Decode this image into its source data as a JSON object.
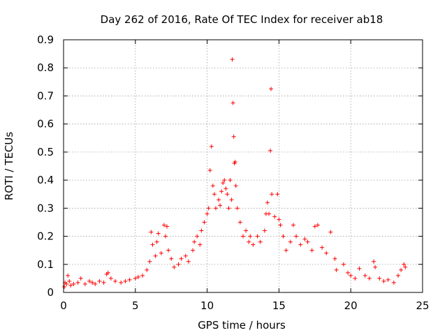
{
  "chart_data": {
    "type": "scatter",
    "title": "Day 262 of 2016, Rate Of TEC Index for receiver ab18",
    "xlabel": "GPS time / hours",
    "ylabel": "ROTI / TECUs",
    "xlim": [
      0,
      25
    ],
    "ylim": [
      0,
      0.9
    ],
    "xticks": [
      0,
      5,
      10,
      15,
      20,
      25
    ],
    "yticks": [
      0,
      0.1,
      0.2,
      0.3,
      0.4,
      0.5,
      0.6,
      0.7,
      0.8,
      0.9
    ],
    "xtick_labels": [
      "0",
      "5",
      "10",
      "15",
      "20",
      "25"
    ],
    "ytick_labels": [
      "0",
      "0.1",
      "0.2",
      "0.3",
      "0.4",
      "0.5",
      "0.6",
      "0.7",
      "0.8",
      "0.9"
    ],
    "grid": true,
    "marker": "+",
    "marker_color": "#ff0000",
    "series": [
      {
        "values": [
          [
            0.05,
            0.02
          ],
          [
            0.1,
            0.035
          ],
          [
            0.2,
            0.03
          ],
          [
            0.3,
            0.06
          ],
          [
            0.4,
            0.04
          ],
          [
            0.5,
            0.025
          ],
          [
            0.7,
            0.03
          ],
          [
            1.0,
            0.035
          ],
          [
            1.2,
            0.05
          ],
          [
            1.5,
            0.03
          ],
          [
            1.8,
            0.04
          ],
          [
            2.0,
            0.035
          ],
          [
            2.2,
            0.03
          ],
          [
            2.5,
            0.04
          ],
          [
            2.8,
            0.035
          ],
          [
            3.0,
            0.065
          ],
          [
            3.1,
            0.07
          ],
          [
            3.3,
            0.05
          ],
          [
            3.6,
            0.04
          ],
          [
            4.0,
            0.035
          ],
          [
            4.3,
            0.04
          ],
          [
            4.6,
            0.045
          ],
          [
            5.0,
            0.05
          ],
          [
            5.2,
            0.055
          ],
          [
            5.5,
            0.06
          ],
          [
            5.8,
            0.08
          ],
          [
            6.0,
            0.11
          ],
          [
            6.1,
            0.215
          ],
          [
            6.2,
            0.17
          ],
          [
            6.4,
            0.13
          ],
          [
            6.5,
            0.18
          ],
          [
            6.6,
            0.21
          ],
          [
            6.8,
            0.14
          ],
          [
            7.0,
            0.24
          ],
          [
            7.1,
            0.2
          ],
          [
            7.2,
            0.235
          ],
          [
            7.3,
            0.15
          ],
          [
            7.5,
            0.12
          ],
          [
            7.7,
            0.09
          ],
          [
            8.0,
            0.1
          ],
          [
            8.2,
            0.12
          ],
          [
            8.5,
            0.13
          ],
          [
            8.7,
            0.11
          ],
          [
            9.0,
            0.15
          ],
          [
            9.1,
            0.18
          ],
          [
            9.3,
            0.2
          ],
          [
            9.5,
            0.17
          ],
          [
            9.6,
            0.22
          ],
          [
            9.8,
            0.25
          ],
          [
            10.0,
            0.28
          ],
          [
            10.1,
            0.3
          ],
          [
            10.2,
            0.435
          ],
          [
            10.3,
            0.52
          ],
          [
            10.4,
            0.38
          ],
          [
            10.5,
            0.35
          ],
          [
            10.6,
            0.3
          ],
          [
            10.8,
            0.33
          ],
          [
            10.9,
            0.31
          ],
          [
            11.0,
            0.36
          ],
          [
            11.1,
            0.39
          ],
          [
            11.2,
            0.4
          ],
          [
            11.3,
            0.37
          ],
          [
            11.4,
            0.35
          ],
          [
            11.5,
            0.3
          ],
          [
            11.6,
            0.4
          ],
          [
            11.7,
            0.33
          ],
          [
            11.75,
            0.83
          ],
          [
            11.8,
            0.675
          ],
          [
            11.85,
            0.555
          ],
          [
            11.9,
            0.46
          ],
          [
            11.95,
            0.465
          ],
          [
            12.0,
            0.38
          ],
          [
            12.1,
            0.3
          ],
          [
            12.3,
            0.25
          ],
          [
            12.5,
            0.2
          ],
          [
            12.7,
            0.22
          ],
          [
            12.9,
            0.18
          ],
          [
            13.0,
            0.2
          ],
          [
            13.2,
            0.17
          ],
          [
            13.5,
            0.2
          ],
          [
            13.7,
            0.18
          ],
          [
            14.0,
            0.22
          ],
          [
            14.1,
            0.28
          ],
          [
            14.2,
            0.32
          ],
          [
            14.3,
            0.28
          ],
          [
            14.4,
            0.505
          ],
          [
            14.45,
            0.725
          ],
          [
            14.5,
            0.35
          ],
          [
            14.7,
            0.27
          ],
          [
            14.9,
            0.35
          ],
          [
            15.0,
            0.26
          ],
          [
            15.1,
            0.24
          ],
          [
            15.3,
            0.2
          ],
          [
            15.5,
            0.15
          ],
          [
            15.8,
            0.18
          ],
          [
            16.0,
            0.24
          ],
          [
            16.2,
            0.2
          ],
          [
            16.5,
            0.17
          ],
          [
            16.8,
            0.19
          ],
          [
            17.0,
            0.18
          ],
          [
            17.3,
            0.15
          ],
          [
            17.5,
            0.235
          ],
          [
            17.7,
            0.24
          ],
          [
            18.0,
            0.16
          ],
          [
            18.3,
            0.14
          ],
          [
            18.6,
            0.215
          ],
          [
            18.9,
            0.12
          ],
          [
            19.0,
            0.08
          ],
          [
            19.5,
            0.1
          ],
          [
            19.8,
            0.07
          ],
          [
            20.0,
            0.06
          ],
          [
            20.3,
            0.05
          ],
          [
            20.6,
            0.085
          ],
          [
            21.0,
            0.06
          ],
          [
            21.3,
            0.05
          ],
          [
            21.6,
            0.11
          ],
          [
            21.7,
            0.09
          ],
          [
            22.0,
            0.05
          ],
          [
            22.3,
            0.04
          ],
          [
            22.6,
            0.045
          ],
          [
            23.0,
            0.035
          ],
          [
            23.3,
            0.06
          ],
          [
            23.5,
            0.08
          ],
          [
            23.7,
            0.1
          ],
          [
            23.8,
            0.09
          ]
        ]
      }
    ]
  }
}
